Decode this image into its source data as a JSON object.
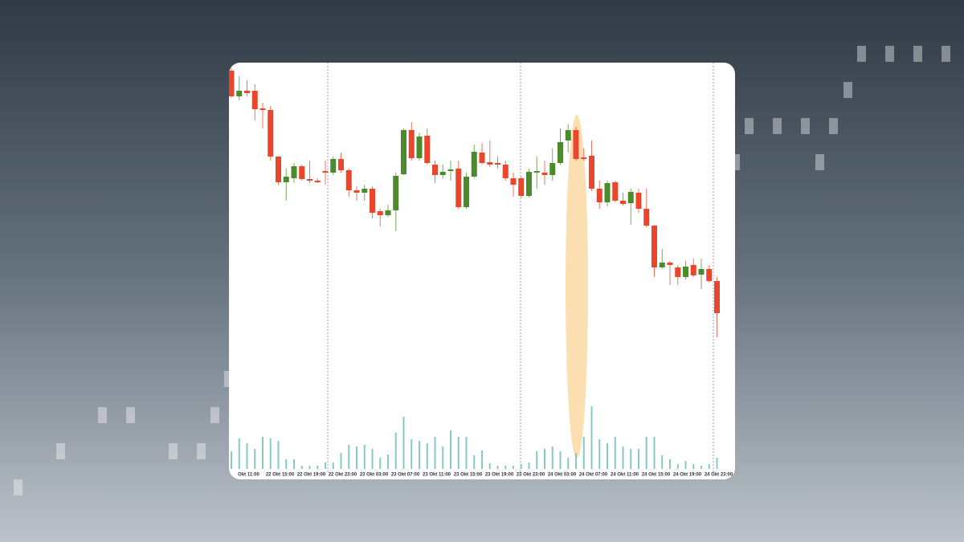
{
  "chart_data": {
    "type": "candlestick",
    "categories": [
      null,
      null,
      "Okt 11:00",
      null,
      null,
      null,
      "22 Okt 15:00",
      null,
      null,
      null,
      "22 Okt 19:00",
      null,
      null,
      null,
      "22 Okt 23:00",
      null,
      null,
      null,
      "23 Okt 03:00",
      null,
      null,
      null,
      "23 Okt 07:00",
      null,
      null,
      null,
      "23 Okt 11:00",
      null,
      null,
      null,
      "23 Okt 15:00",
      null,
      null,
      null,
      "23 Okt 19:00",
      null,
      null,
      null,
      "23 Okt 23:00",
      null,
      null,
      null,
      "24 Okt 03:00",
      null,
      null,
      null,
      "24 Okt 07:00",
      null,
      null,
      null,
      "24 Okt 11:00",
      null,
      null,
      null,
      "24 Okt 15:00",
      null,
      null,
      null,
      "24 Okt 19:00",
      null,
      null,
      null,
      "24 Okt 23:00"
    ],
    "open": [
      412,
      380,
      387,
      387,
      365,
      363,
      305,
      273,
      278,
      293,
      277,
      275,
      287,
      285,
      302,
      288,
      263,
      260,
      265,
      237,
      232,
      238,
      283,
      338,
      303,
      331,
      295,
      282,
      287,
      290,
      242,
      280,
      310,
      298,
      297,
      295,
      278,
      278,
      256,
      285,
      285,
      282,
      297,
      325,
      338,
      304,
      306,
      265,
      248,
      273,
      250,
      247,
      260,
      240,
      219,
      167,
      173,
      167,
      155,
      170,
      158,
      165,
      150
    ],
    "high": [
      415,
      405,
      400,
      395,
      372,
      368,
      305,
      290,
      297,
      295,
      300,
      278,
      300,
      305,
      310,
      290,
      268,
      270,
      268,
      240,
      245,
      285,
      340,
      348,
      335,
      340,
      300,
      295,
      300,
      300,
      285,
      320,
      322,
      325,
      305,
      300,
      285,
      280,
      290,
      305,
      300,
      315,
      340,
      345,
      342,
      315,
      325,
      275,
      275,
      275,
      260,
      265,
      265,
      265,
      220,
      190,
      175,
      170,
      175,
      178,
      178,
      170,
      155
    ],
    "low": [
      378,
      375,
      380,
      350,
      340,
      300,
      270,
      250,
      272,
      275,
      272,
      272,
      270,
      282,
      285,
      255,
      250,
      250,
      228,
      218,
      230,
      212,
      282,
      300,
      300,
      295,
      272,
      278,
      275,
      240,
      240,
      278,
      295,
      292,
      290,
      275,
      255,
      254,
      254,
      265,
      270,
      275,
      295,
      310,
      300,
      300,
      262,
      240,
      243,
      248,
      244,
      220,
      235,
      217,
      155,
      165,
      145,
      145,
      152,
      155,
      140,
      148,
      80
    ],
    "close": [
      380,
      387,
      384,
      364,
      363,
      305,
      273,
      280,
      293,
      277,
      275,
      273,
      285,
      302,
      288,
      263,
      260,
      265,
      235,
      232,
      238,
      281,
      338,
      303,
      330,
      297,
      282,
      286,
      289,
      242,
      280,
      311,
      297,
      295,
      295,
      278,
      270,
      256,
      286,
      287,
      282,
      297,
      323,
      338,
      302,
      302,
      265,
      248,
      272,
      250,
      246,
      261,
      240,
      219,
      167,
      173,
      170,
      155,
      168,
      157,
      165,
      150,
      110
    ],
    "volume": [
      22,
      38,
      32,
      25,
      40,
      38,
      35,
      12,
      12,
      4,
      4,
      4,
      8,
      8,
      20,
      30,
      28,
      30,
      25,
      14,
      18,
      45,
      65,
      37,
      35,
      32,
      40,
      28,
      48,
      40,
      40,
      17,
      23,
      7,
      4,
      4,
      4,
      6,
      8,
      22,
      25,
      28,
      22,
      14,
      20,
      40,
      78,
      37,
      32,
      40,
      28,
      25,
      25,
      40,
      40,
      17,
      12,
      6,
      10,
      6,
      4,
      6,
      14
    ],
    "up_color": "#4b8b2b",
    "down_color": "#e9462b",
    "volume_color": "#86c9c6"
  }
}
